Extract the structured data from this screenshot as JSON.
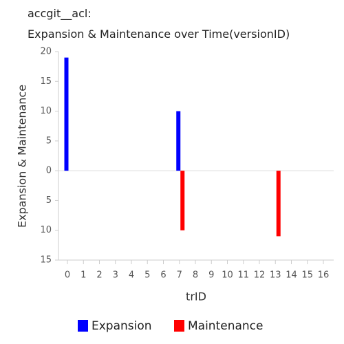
{
  "chart_data": {
    "type": "bar",
    "title": [
      "accgit__acl:",
      "Expansion & Maintenance over Time(versionID)"
    ],
    "x_label": "trID",
    "y_label": "Expansion & Maintenance",
    "categories": [
      "0",
      "1",
      "2",
      "3",
      "4",
      "5",
      "6",
      "7",
      "8",
      "9",
      "10",
      "11",
      "12",
      "13",
      "14",
      "15",
      "16"
    ],
    "series": [
      {
        "name": "Expansion",
        "color": "#0000ff",
        "values": [
          19,
          null,
          null,
          null,
          null,
          null,
          null,
          10,
          null,
          null,
          null,
          null,
          null,
          null,
          null,
          null,
          null
        ]
      },
      {
        "name": "Maintenance",
        "color": "#ff0000",
        "values": [
          null,
          null,
          null,
          null,
          null,
          null,
          null,
          -10,
          null,
          null,
          null,
          null,
          null,
          -11,
          null,
          null,
          null
        ]
      }
    ],
    "ylim": [
      -15,
      20
    ],
    "yticks": [
      20,
      15,
      10,
      5,
      0,
      {
        "value": -5,
        "label": "5"
      },
      {
        "value": -10,
        "label": "10"
      },
      {
        "value": -15,
        "label": "15"
      }
    ],
    "grid": false
  }
}
